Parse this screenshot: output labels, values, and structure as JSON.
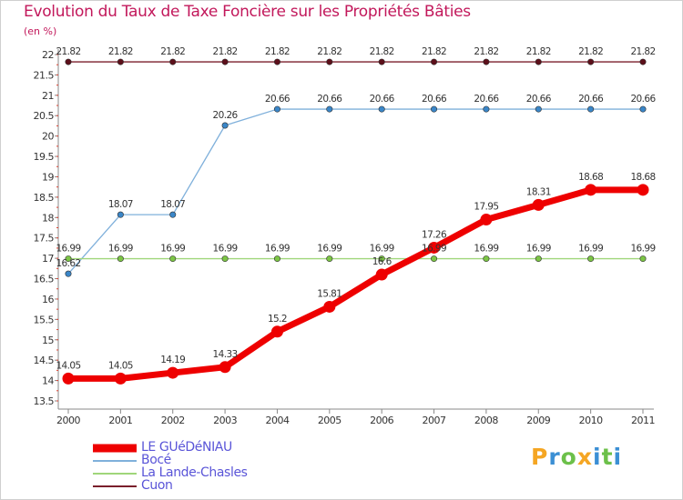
{
  "title": "Evolution du Taux de Taxe Foncière sur les Propriétés Bâties",
  "unit_label": "(en %)",
  "logo": {
    "text": "Proxiti",
    "letters": [
      {
        "ch": "P",
        "color": "#f5a623"
      },
      {
        "ch": "r",
        "color": "#3b8fd4"
      },
      {
        "ch": "o",
        "color": "#6cc04a"
      },
      {
        "ch": "x",
        "color": "#f5a623"
      },
      {
        "ch": "i",
        "color": "#3b8fd4"
      },
      {
        "ch": "t",
        "color": "#6cc04a"
      },
      {
        "ch": "i",
        "color": "#3b8fd4"
      }
    ]
  },
  "chart_data": {
    "type": "line",
    "x": [
      "2000",
      "2001",
      "2002",
      "2003",
      "2004",
      "2005",
      "2006",
      "2007",
      "2008",
      "2009",
      "2010",
      "2011"
    ],
    "ylim": [
      13.5,
      22
    ],
    "yticks": [
      13.5,
      14,
      14.5,
      15,
      15.5,
      16,
      16.5,
      17,
      17.5,
      18,
      18.5,
      19,
      19.5,
      20,
      20.5,
      21,
      21.5,
      22
    ],
    "ytick_labels": [
      "13.5",
      "14",
      "14.5",
      "15",
      "15.5",
      "16",
      "16.5",
      "17",
      "17.5",
      "18",
      "18.5",
      "19",
      "19.5",
      "20",
      "20.5",
      "21",
      "21.5",
      "22"
    ],
    "grid": false,
    "legend_position": "bottom-left",
    "series": [
      {
        "name": "Cuon",
        "color": "#7a1f2b",
        "marker": "#5c0f1a",
        "thick": false,
        "values": [
          21.82,
          21.82,
          21.82,
          21.82,
          21.82,
          21.82,
          21.82,
          21.82,
          21.82,
          21.82,
          21.82,
          21.82
        ],
        "labels": [
          "21.82",
          "21.82",
          "21.82",
          "21.82",
          "21.82",
          "21.82",
          "21.82",
          "21.82",
          "21.82",
          "21.82",
          "21.82",
          "21.82"
        ]
      },
      {
        "name": "Bocé",
        "color": "#7fb0db",
        "marker": "#3a86c8",
        "thick": false,
        "values": [
          16.62,
          18.07,
          18.07,
          20.26,
          20.66,
          20.66,
          20.66,
          20.66,
          20.66,
          20.66,
          20.66,
          20.66
        ],
        "labels": [
          "16.62",
          "18.07",
          "18.07",
          "20.26",
          "20.66",
          "20.66",
          "20.66",
          "20.66",
          "20.66",
          "20.66",
          "20.66",
          "20.66"
        ]
      },
      {
        "name": "La Lande-Chasles",
        "color": "#9fd67a",
        "marker": "#7cc545",
        "thick": false,
        "values": [
          16.99,
          16.99,
          16.99,
          16.99,
          16.99,
          16.99,
          16.99,
          16.99,
          16.99,
          16.99,
          16.99,
          16.99
        ],
        "labels": [
          "16.99",
          "16.99",
          "16.99",
          "16.99",
          "16.99",
          "16.99",
          "16.99",
          "16.99",
          "16.99",
          "16.99",
          "16.99",
          "16.99"
        ]
      },
      {
        "name": "LE GUéDéNIAU",
        "color": "#ee0000",
        "marker": "#ee0000",
        "thick": true,
        "values": [
          14.05,
          14.05,
          14.19,
          14.33,
          15.2,
          15.81,
          16.6,
          17.26,
          17.95,
          18.31,
          18.68,
          18.68
        ],
        "labels": [
          "14.05",
          "14.05",
          "14.19",
          "14.33",
          "15.2",
          "15.81",
          "16.6",
          "17.26",
          "17.95",
          "18.31",
          "18.68",
          "18.68"
        ]
      }
    ],
    "legend": [
      "LE GUéDéNIAU",
      "Bocé",
      "La Lande-Chasles",
      "Cuon"
    ]
  }
}
